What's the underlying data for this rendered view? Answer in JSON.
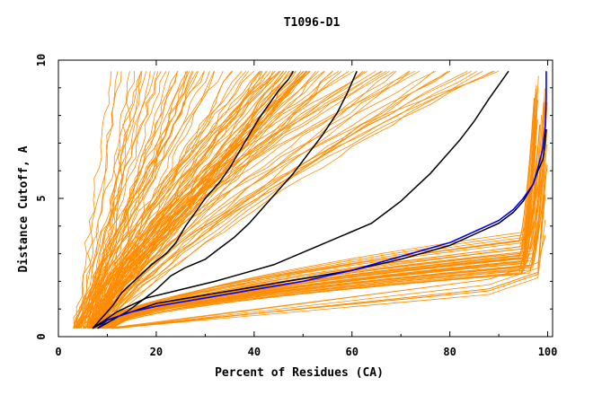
{
  "chart_data": {
    "type": "line",
    "title": "T1096-D1",
    "xlabel": "Percent of Residues (CA)",
    "ylabel": "Distance Cutoff, A",
    "xlim": [
      0,
      101
    ],
    "ylim": [
      0,
      10
    ],
    "x_ticks": [
      {
        "value": 0,
        "label": "0"
      },
      {
        "value": 20,
        "label": "20"
      },
      {
        "value": 40,
        "label": "40"
      },
      {
        "value": 60,
        "label": "60"
      },
      {
        "value": 80,
        "label": "80"
      },
      {
        "value": 100,
        "label": "100"
      }
    ],
    "y_ticks": [
      {
        "value": 0,
        "label": "0"
      },
      {
        "value": 5,
        "label": "5"
      },
      {
        "value": 10,
        "label": "10"
      }
    ],
    "grid": false,
    "legend": "none",
    "colors": {
      "models": "#ff8c00",
      "highlight": "#000000",
      "reference": "#0000ff",
      "axes": "#000000"
    },
    "series": [
      {
        "color": "#000000",
        "x": [
          7,
          9,
          11,
          13,
          16,
          19,
          22,
          24,
          26,
          28,
          30,
          33,
          35,
          37,
          39,
          41,
          43,
          45,
          47,
          48
        ],
        "y": [
          0.3,
          0.7,
          1.1,
          1.6,
          2.1,
          2.6,
          3.0,
          3.4,
          4.0,
          4.5,
          5.0,
          5.6,
          6.1,
          6.7,
          7.3,
          7.9,
          8.4,
          8.9,
          9.3,
          9.6
        ]
      },
      {
        "color": "#000000",
        "x": [
          8,
          11,
          14,
          17,
          20,
          23,
          26,
          30,
          33,
          36,
          39,
          42,
          45,
          48,
          51,
          54,
          57,
          59,
          61
        ],
        "y": [
          0.3,
          0.6,
          0.9,
          1.3,
          1.7,
          2.2,
          2.5,
          2.8,
          3.2,
          3.6,
          4.1,
          4.7,
          5.3,
          5.9,
          6.6,
          7.3,
          8.1,
          8.8,
          9.6
        ]
      },
      {
        "color": "#000000",
        "x": [
          7,
          12,
          18,
          25,
          32,
          38,
          44,
          48,
          52,
          56,
          60,
          64,
          67,
          70,
          73,
          76,
          79,
          82,
          85,
          88,
          92
        ],
        "y": [
          0.3,
          0.9,
          1.4,
          1.7,
          2.0,
          2.3,
          2.6,
          2.9,
          3.2,
          3.5,
          3.8,
          4.1,
          4.5,
          4.9,
          5.4,
          5.9,
          6.5,
          7.1,
          7.8,
          8.6,
          9.6
        ]
      },
      {
        "color": "#000000",
        "x": [
          7,
          10,
          15,
          20,
          30,
          40,
          50,
          60,
          70,
          80,
          85,
          90,
          93,
          95,
          97,
          98,
          99,
          99.4,
          99.7
        ],
        "y": [
          0.3,
          0.6,
          0.9,
          1.2,
          1.5,
          1.8,
          2.1,
          2.4,
          2.8,
          3.3,
          3.7,
          4.1,
          4.5,
          4.9,
          5.5,
          6.0,
          6.4,
          6.9,
          7.5
        ]
      },
      {
        "color": "#0000ff",
        "x": [
          8,
          10,
          15,
          20,
          30,
          40,
          50,
          60,
          70,
          80,
          85,
          90,
          93,
          95,
          97,
          98,
          99,
          99.5,
          99.7,
          99.7
        ],
        "y": [
          0.3,
          0.6,
          0.9,
          1.1,
          1.4,
          1.7,
          2.0,
          2.4,
          2.9,
          3.4,
          3.8,
          4.2,
          4.6,
          5.0,
          5.5,
          6.1,
          6.8,
          7.6,
          8.6,
          9.6
        ]
      }
    ]
  }
}
